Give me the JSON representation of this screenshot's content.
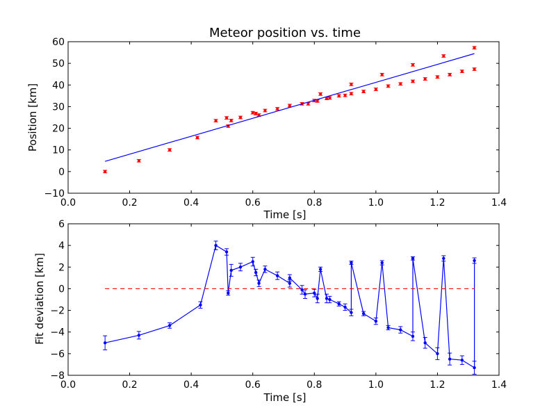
{
  "chart_data": [
    {
      "type": "scatter",
      "title": "Meteor position vs. time",
      "xlabel": "Time [s]",
      "ylabel": "Position [km]",
      "xlim": [
        0.0,
        1.4
      ],
      "ylim": [
        -10,
        60
      ],
      "xticks": [
        "0.0",
        "0.2",
        "0.4",
        "0.6",
        "0.8",
        "1.0",
        "1.2",
        "1.4"
      ],
      "yticks": [
        "−10",
        "0",
        "10",
        "20",
        "30",
        "40",
        "50",
        "60"
      ],
      "grid": false,
      "colors": {
        "points": "#ff0000",
        "fit": "#0000ff"
      },
      "series": [
        {
          "style": "points-with-errorbars",
          "x": [
            0.12,
            0.23,
            0.33,
            0.42,
            0.48,
            0.515,
            0.52,
            0.53,
            0.56,
            0.6,
            0.61,
            0.62,
            0.64,
            0.68,
            0.72,
            0.76,
            0.78,
            0.8,
            0.81,
            0.82,
            0.84,
            0.85,
            0.88,
            0.9,
            0.92,
            0.92,
            0.96,
            1.0,
            1.02,
            1.04,
            1.08,
            1.12,
            1.12,
            1.16,
            1.2,
            1.22,
            1.24,
            1.28,
            1.32,
            1.32
          ],
          "y": [
            0.0,
            5.0,
            10.0,
            15.7,
            23.5,
            24.8,
            21.0,
            23.6,
            25.0,
            27.2,
            26.8,
            26.1,
            28.2,
            29.0,
            30.5,
            31.3,
            31.3,
            32.8,
            32.6,
            35.8,
            33.8,
            34.0,
            35.0,
            35.2,
            36.0,
            40.3,
            37.0,
            38.0,
            44.8,
            39.5,
            40.5,
            41.7,
            49.3,
            42.8,
            43.7,
            53.4,
            44.8,
            46.3,
            47.3,
            57.2
          ],
          "error": 0.6
        },
        {
          "style": "line",
          "x": [
            0.12,
            1.32
          ],
          "y": [
            4.7,
            54.5
          ]
        }
      ]
    },
    {
      "type": "line",
      "xlabel": "Time [s]",
      "ylabel": "Fit deviation [km]",
      "xlim": [
        0.0,
        1.4
      ],
      "ylim": [
        -8,
        6
      ],
      "xticks": [
        "0.0",
        "0.2",
        "0.4",
        "0.6",
        "0.8",
        "1.0",
        "1.2",
        "1.4"
      ],
      "yticks": [
        "−8",
        "−6",
        "−4",
        "−2",
        "0",
        "2",
        "4",
        "6"
      ],
      "grid": false,
      "colors": {
        "line": "#0000ff",
        "zero_line": "#ff0000"
      },
      "series": [
        {
          "style": "line-markers-errorbars",
          "x": [
            0.12,
            0.23,
            0.33,
            0.43,
            0.48,
            0.515,
            0.52,
            0.53,
            0.56,
            0.6,
            0.61,
            0.62,
            0.64,
            0.68,
            0.72,
            0.72,
            0.76,
            0.77,
            0.8,
            0.81,
            0.82,
            0.84,
            0.85,
            0.88,
            0.9,
            0.92,
            0.92,
            0.96,
            1.0,
            1.02,
            1.04,
            1.08,
            1.12,
            1.12,
            1.16,
            1.2,
            1.22,
            1.24,
            1.28,
            1.32,
            1.32
          ],
          "y": [
            -5.0,
            -4.3,
            -3.4,
            -1.5,
            4.0,
            3.4,
            -0.4,
            1.7,
            2.0,
            2.5,
            1.5,
            0.5,
            1.8,
            1.2,
            0.5,
            1.0,
            -0.1,
            -0.5,
            -0.4,
            -0.9,
            1.8,
            -0.9,
            -1.0,
            -1.4,
            -1.7,
            -2.2,
            2.4,
            -2.3,
            -3.0,
            2.4,
            -3.6,
            -3.8,
            -4.4,
            2.8,
            -5.0,
            -6.0,
            2.8,
            -6.5,
            -6.6,
            -7.3,
            2.6
          ],
          "error": [
            0.65,
            0.35,
            0.25,
            0.3,
            0.4,
            0.3,
            0.2,
            0.55,
            0.35,
            0.4,
            0.3,
            0.3,
            0.3,
            0.35,
            0.35,
            0.3,
            0.4,
            0.4,
            0.35,
            0.4,
            0.2,
            0.4,
            0.3,
            0.2,
            0.3,
            0.3,
            0.15,
            0.2,
            0.3,
            0.2,
            0.2,
            0.3,
            0.4,
            0.15,
            0.5,
            0.55,
            0.25,
            0.55,
            0.4,
            0.6,
            0.25
          ]
        },
        {
          "style": "dashed",
          "x": [
            0.12,
            1.32
          ],
          "y": [
            0,
            0
          ]
        }
      ]
    }
  ]
}
